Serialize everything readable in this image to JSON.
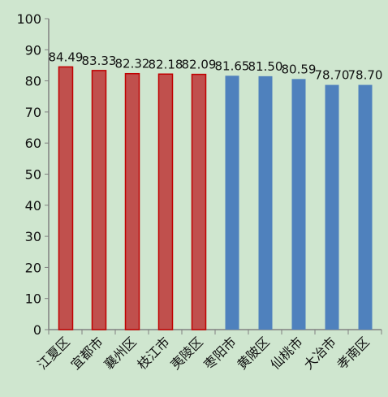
{
  "chart_data": {
    "type": "bar",
    "categories": [
      "江夏区",
      "宜都市",
      "襄州区",
      "枝江市",
      "夷陵区",
      "枣阳市",
      "黄陂区",
      "仙桃市",
      "大冶市",
      "孝南区"
    ],
    "values": [
      84.49,
      83.33,
      82.32,
      82.18,
      82.09,
      81.65,
      81.5,
      80.59,
      78.7,
      78.7
    ],
    "data_labels": [
      "84.49",
      "83.33",
      "82.32",
      "82.18",
      "82.09",
      "81.65",
      "81.50",
      "80.59",
      "78.70",
      "78.70"
    ],
    "y_ticks": [
      "0",
      "10",
      "20",
      "30",
      "40",
      "50",
      "60",
      "70",
      "80",
      "90",
      "100"
    ],
    "ylim": [
      0,
      100
    ],
    "grid": false,
    "title": "",
    "xlabel": "",
    "ylabel": "",
    "highlight_count": 5,
    "colors": {
      "highlight_fill": "#c0504d",
      "highlight_stroke": "#c00000",
      "normal_fill": "#4f81bd",
      "axis": "#808080",
      "background": "#cfe6cf"
    }
  }
}
